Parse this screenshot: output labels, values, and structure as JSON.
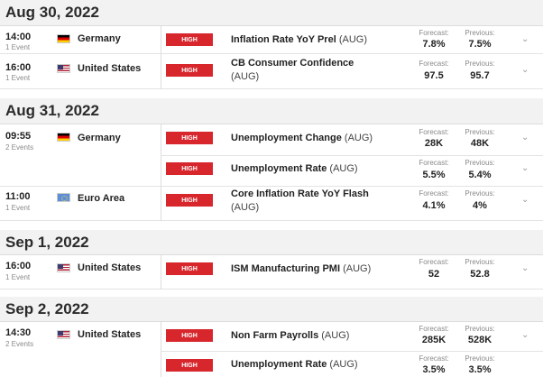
{
  "labels": {
    "forecast": "Forecast:",
    "previous": "Previous:"
  },
  "days": [
    {
      "date": "Aug 30, 2022",
      "groups": [
        {
          "time": "14:00",
          "events_count": "1 Event",
          "country": "Germany",
          "flag": "de",
          "events": [
            {
              "impact": "HIGH",
              "name": "Inflation Rate YoY Prel",
              "period": "(AUG)",
              "forecast": "7.8%",
              "previous": "7.5%"
            }
          ]
        },
        {
          "time": "16:00",
          "events_count": "1 Event",
          "country": "United States",
          "flag": "us",
          "events": [
            {
              "impact": "HIGH",
              "name": "CB Consumer Confidence",
              "period": "(AUG)",
              "forecast": "97.5",
              "previous": "95.7"
            }
          ]
        }
      ]
    },
    {
      "date": "Aug 31, 2022",
      "groups": [
        {
          "time": "09:55",
          "events_count": "2 Events",
          "country": "Germany",
          "flag": "de",
          "events": [
            {
              "impact": "HIGH",
              "name": "Unemployment Change",
              "period": "(AUG)",
              "forecast": "28K",
              "previous": "48K"
            },
            {
              "impact": "HIGH",
              "name": "Unemployment Rate",
              "period": "(AUG)",
              "forecast": "5.5%",
              "previous": "5.4%"
            }
          ]
        },
        {
          "time": "11:00",
          "events_count": "1 Event",
          "country": "Euro Area",
          "flag": "eu",
          "events": [
            {
              "impact": "HIGH",
              "name": "Core Inflation Rate YoY Flash",
              "period": "(AUG)",
              "forecast": "4.1%",
              "previous": "4%"
            }
          ]
        }
      ]
    },
    {
      "date": "Sep 1, 2022",
      "groups": [
        {
          "time": "16:00",
          "events_count": "1 Event",
          "country": "United States",
          "flag": "us",
          "events": [
            {
              "impact": "HIGH",
              "name": "ISM Manufacturing PMI",
              "period": "(AUG)",
              "forecast": "52",
              "previous": "52.8"
            }
          ]
        }
      ]
    },
    {
      "date": "Sep 2, 2022",
      "groups": [
        {
          "time": "14:30",
          "events_count": "2 Events",
          "country": "United States",
          "flag": "us",
          "events": [
            {
              "impact": "HIGH",
              "name": "Non Farm Payrolls",
              "period": "(AUG)",
              "forecast": "285K",
              "previous": "528K"
            },
            {
              "impact": "HIGH",
              "name": "Unemployment Rate",
              "period": "(AUG)",
              "forecast": "3.5%",
              "previous": "3.5%"
            }
          ]
        }
      ]
    }
  ]
}
